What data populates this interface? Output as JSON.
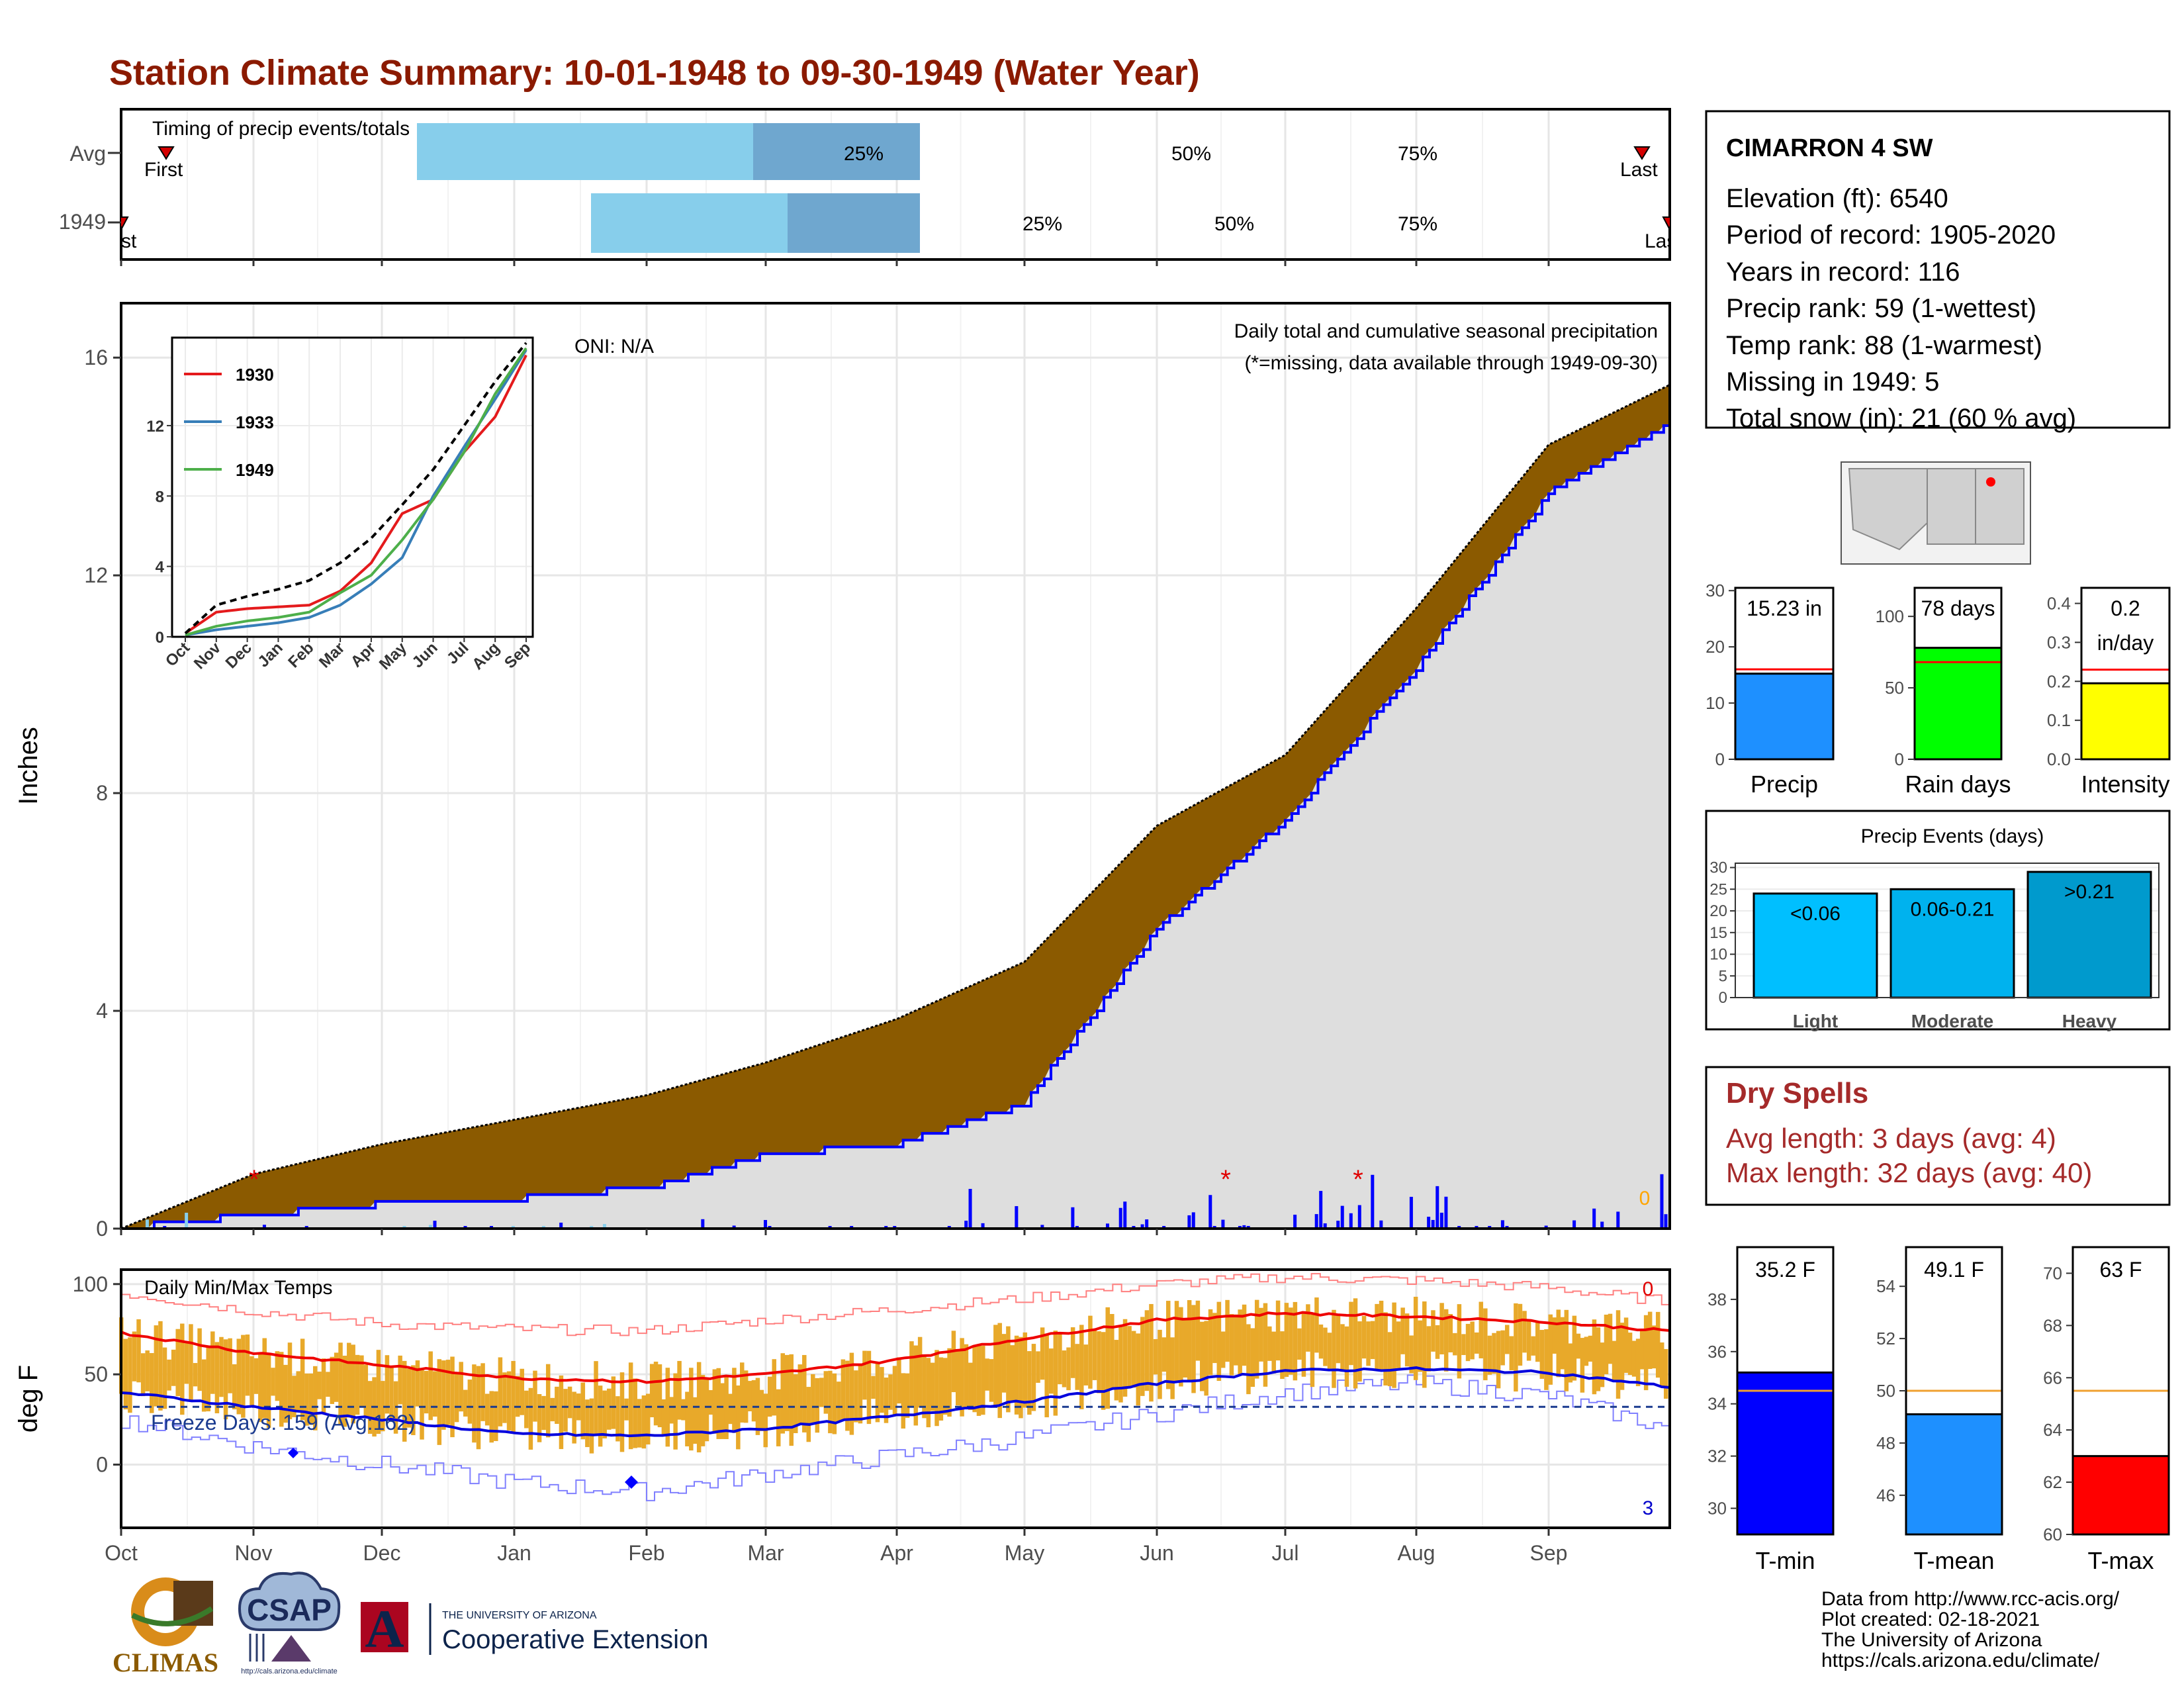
{
  "title": "Station Climate Summary: 10-01-1948 to 09-30-1949 (Water Year)",
  "timing": {
    "label": "Timing of precip events/totals",
    "rows": [
      {
        "name": "Avg",
        "first_label": "First",
        "last_label": "Last",
        "p25": "25%",
        "p50": "50%",
        "p75": "75%"
      },
      {
        "name": "1949",
        "first_label": "First",
        "last_label": "Last",
        "p25": "25%",
        "p50": "50%",
        "p75": "75%"
      }
    ]
  },
  "precip_panel": {
    "title": "Daily total and cumulative seasonal precipitation",
    "note": "(*=missing, data available through 1949-09-30)",
    "oni": "ONI: N/A",
    "ylabel": "Inches",
    "yticks": [
      "0",
      "4",
      "8",
      "12",
      "16"
    ],
    "missing_count": "0"
  },
  "months": [
    "Oct",
    "Nov",
    "Dec",
    "Jan",
    "Feb",
    "Mar",
    "Apr",
    "May",
    "Jun",
    "Jul",
    "Aug",
    "Sep"
  ],
  "inset": {
    "legend": [
      "1930",
      "1933",
      "1949"
    ],
    "legend_colors": [
      "#e41a1c",
      "#377eb8",
      "#4daf4a"
    ],
    "yticks": [
      "0",
      "4",
      "8",
      "12"
    ],
    "months": [
      "Oct",
      "Nov",
      "Dec",
      "Jan",
      "Feb",
      "Mar",
      "Apr",
      "May",
      "Jun",
      "Jul",
      "Aug",
      "Sep"
    ]
  },
  "temp_panel": {
    "title": "Daily Min/Max Temps",
    "freeze": "Freeze Days: 159 (Avg:162)",
    "ylabel": "deg F",
    "yticks": [
      "0",
      "50",
      "100"
    ],
    "record_high_count": "0",
    "record_low_count": "3"
  },
  "station": {
    "name": "CIMARRON 4 SW",
    "lines": [
      "Elevation (ft): 6540",
      "Period of record: 1905-2020",
      "Years in record: 116",
      "Precip rank: 59 (1-wettest)",
      "Temp rank: 88 (1-warmest)",
      "Missing in 1949: 5",
      "Total snow (in): 21 (60 % avg)"
    ]
  },
  "bars": {
    "precip": {
      "label": "Precip",
      "value_label": "15.23 in",
      "value": 15.23,
      "avg": 16.0,
      "yticks": [
        "0",
        "10",
        "20",
        "30"
      ],
      "color": "#1e90ff"
    },
    "rain_days": {
      "label": "Rain days",
      "value_label": "78 days",
      "value": 78,
      "avg": 68,
      "yticks": [
        "0",
        "50",
        "100"
      ],
      "color": "#00ff00"
    },
    "intensity": {
      "label": "Intensity",
      "value_label1": "0.2",
      "value_label2": "in/day",
      "value": 0.195,
      "avg": 0.23,
      "yticks": [
        "0.0",
        "0.1",
        "0.2",
        "0.3",
        "0.4"
      ],
      "color": "#ffff00"
    }
  },
  "events": {
    "title": "Precip Events (days)",
    "categories": [
      "Light",
      "Moderate",
      "Heavy"
    ],
    "labels": [
      "<0.06",
      "0.06-0.21",
      ">0.21"
    ],
    "values": [
      24,
      25,
      29
    ],
    "colors": [
      "#00bfff",
      "#00b2ee",
      "#009acd"
    ],
    "yticks": [
      "0",
      "5",
      "10",
      "15",
      "20",
      "25",
      "30"
    ]
  },
  "dry_spells": {
    "title": "Dry Spells",
    "avg": "Avg length: 3 days (avg: 4)",
    "max": "Max length: 32 days (avg: 40)"
  },
  "temp_bars": {
    "tmin": {
      "label": "T-min",
      "value_label": "35.2 F",
      "value": 35.2,
      "avg": 34.5,
      "ymin": 29,
      "ymax": 40,
      "yticks": [
        "30",
        "32",
        "34",
        "36",
        "38"
      ],
      "color": "#0000ff"
    },
    "tmean": {
      "label": "T-mean",
      "value_label": "49.1 F",
      "value": 49.1,
      "avg": 50.0,
      "ymin": 44.5,
      "ymax": 55.5,
      "yticks": [
        "46",
        "48",
        "50",
        "52",
        "54"
      ],
      "color": "#1e90ff"
    },
    "tmax": {
      "label": "T-max",
      "value_label": "63 F",
      "value": 63.0,
      "avg": 65.5,
      "ymin": 60,
      "ymax": 71,
      "yticks": [
        "60",
        "62",
        "64",
        "66",
        "68",
        "70"
      ],
      "color": "#ff0000"
    }
  },
  "footer": [
    "Data from http://www.rcc-acis.org/",
    "Plot created: 02-18-2021",
    "The University of Arizona",
    "https://cals.arizona.edu/climate/"
  ],
  "logos": {
    "climas": "CLIMAS",
    "csap": "CSAP",
    "csap_url": "http://cals.arizona.edu/climate",
    "ua_small": "THE UNIVERSITY OF ARIZONA",
    "ua_big": "Cooperative Extension",
    "ua_letter": "A"
  },
  "chart_data": {
    "type": "area",
    "title": "Daily total and cumulative seasonal precipitation",
    "ylabel": "Inches",
    "ylim": [
      0,
      17
    ],
    "x": [
      "Oct",
      "Nov",
      "Dec",
      "Jan",
      "Feb",
      "Mar",
      "Apr",
      "May",
      "Jun",
      "Jul",
      "Aug",
      "Sep",
      "Sep-30"
    ],
    "series": [
      {
        "name": "",
        "values": [
          0.0,
          1.0,
          1.55,
          2.0,
          2.45,
          3.05,
          3.85,
          4.9,
          7.4,
          8.7,
          11.4,
          14.4,
          15.5
        ]
      },
      {
        "name": "",
        "values": [
          0.0,
          0.25,
          0.45,
          0.55,
          0.75,
          1.35,
          1.55,
          2.3,
          5.5,
          7.5,
          10.3,
          13.5,
          14.8
        ]
      }
    ],
    "inset": {
      "type": "line",
      "ylim": [
        0,
        17
      ],
      "series": [
        {
          "name": "1930",
          "values": [
            0.2,
            1.4,
            1.6,
            1.7,
            1.8,
            2.6,
            4.2,
            7.0,
            7.8,
            10.5,
            12.5,
            16.0
          ]
        },
        {
          "name": "1933",
          "values": [
            0.1,
            0.4,
            0.6,
            0.8,
            1.1,
            1.8,
            3.0,
            4.5,
            8.0,
            10.8,
            13.5,
            16.3
          ]
        },
        {
          "name": "1949",
          "values": [
            0.1,
            0.6,
            0.9,
            1.1,
            1.4,
            2.5,
            3.5,
            5.5,
            7.8,
            10.5,
            13.8,
            16.4
          ]
        },
        {
          "name": "",
          "values": [
            0.2,
            1.8,
            2.3,
            2.7,
            3.2,
            4.2,
            5.6,
            7.5,
            9.5,
            12.0,
            14.5,
            16.7
          ]
        }
      ]
    },
    "temperature": {
      "ylim": [
        -35,
        108
      ],
      "max_smooth": [
        73,
        62,
        55,
        48,
        46,
        50,
        58,
        70,
        80,
        84,
        82,
        79,
        74
      ],
      "min_smooth": [
        40,
        32,
        25,
        17,
        16,
        20,
        27,
        35,
        45,
        52,
        53,
        51,
        43
      ],
      "record_high": [
        95,
        85,
        78,
        75,
        74,
        80,
        86,
        92,
        100,
        104,
        102,
        98,
        90
      ],
      "record_low": [
        25,
        10,
        0,
        -10,
        -15,
        -5,
        5,
        15,
        28,
        40,
        45,
        38,
        20
      ],
      "freeze_line": 32
    }
  }
}
